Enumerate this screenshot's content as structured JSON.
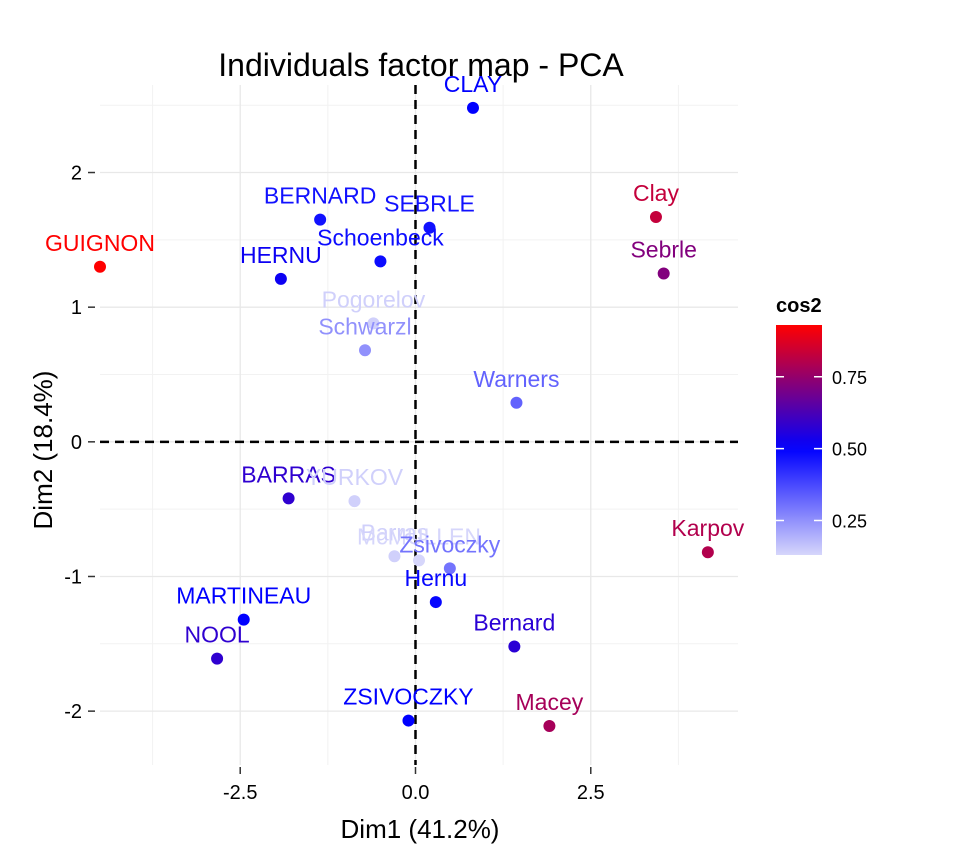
{
  "chart_data": {
    "type": "scatter",
    "title": "Individuals factor map - PCA",
    "xlabel": "Dim1 (41.2%)",
    "ylabel": "Dim2 (18.4%)",
    "xlim": [
      -4.5,
      4.6
    ],
    "ylim": [
      -2.4,
      2.65
    ],
    "x_ticks": [
      -2.5,
      0.0,
      2.5
    ],
    "x_tick_labels": [
      "-2.5",
      "0.0",
      "2.5"
    ],
    "y_ticks": [
      -2,
      -1,
      0,
      1,
      2
    ],
    "y_tick_labels": [
      "-2",
      "-1",
      "0",
      "1",
      "2"
    ],
    "grid": true,
    "reference_lines": {
      "x": 0,
      "y": 0,
      "style": "dashed"
    },
    "color_scale": {
      "name": "cos2",
      "min": 0.13,
      "max": 0.93,
      "low_color": "#d6d6fb",
      "mid_color": "#0000ff",
      "high_color": "#ff0000",
      "midpoint": 0.5,
      "ticks": [
        0.25,
        0.5,
        0.75
      ],
      "tick_labels": [
        "0.25",
        "0.50",
        "0.75"
      ]
    },
    "legend_position": "right",
    "points": [
      {
        "name": "SEBRLE",
        "x": 0.2,
        "y": 1.59,
        "cos2": 0.47
      },
      {
        "name": "CLAY",
        "x": 0.82,
        "y": 2.48,
        "cos2": 0.5
      },
      {
        "name": "BERNARD",
        "x": -1.36,
        "y": 1.65,
        "cos2": 0.47
      },
      {
        "name": "Schoenbeck",
        "x": -0.5,
        "y": 1.34,
        "cos2": 0.48
      },
      {
        "name": "HERNU",
        "x": -1.92,
        "y": 1.21,
        "cos2": 0.52
      },
      {
        "name": "GUIGNON",
        "x": -4.5,
        "y": 1.3,
        "cos2": 0.93
      },
      {
        "name": "Pogorelov",
        "x": -0.6,
        "y": 0.88,
        "cos2": 0.14
      },
      {
        "name": "Schwarzl",
        "x": -0.72,
        "y": 0.68,
        "cos2": 0.25
      },
      {
        "name": "Warners",
        "x": 1.44,
        "y": 0.29,
        "cos2": 0.33
      },
      {
        "name": "Clay",
        "x": 3.43,
        "y": 1.67,
        "cos2": 0.83
      },
      {
        "name": "Sebrle",
        "x": 3.54,
        "y": 1.25,
        "cos2": 0.72
      },
      {
        "name": "Karpov",
        "x": 4.17,
        "y": -0.82,
        "cos2": 0.8
      },
      {
        "name": "BARRAS",
        "x": -1.81,
        "y": -0.42,
        "cos2": 0.58
      },
      {
        "name": "YURKOV",
        "x": -0.87,
        "y": -0.44,
        "cos2": 0.14
      },
      {
        "name": "Barras",
        "x": -0.3,
        "y": -0.85,
        "cos2": 0.14
      },
      {
        "name": "McMULLEN",
        "x": 0.05,
        "y": -0.88,
        "cos2": 0.13
      },
      {
        "name": "Zsivoczky",
        "x": 0.49,
        "y": -0.94,
        "cos2": 0.3
      },
      {
        "name": "Hernu",
        "x": 0.29,
        "y": -1.19,
        "cos2": 0.49
      },
      {
        "name": "MARTINEAU",
        "x": -2.45,
        "y": -1.32,
        "cos2": 0.5
      },
      {
        "name": "Bernard",
        "x": 1.41,
        "y": -1.52,
        "cos2": 0.57
      },
      {
        "name": "NOOL",
        "x": -2.83,
        "y": -1.61,
        "cos2": 0.58
      },
      {
        "name": "ZSIVOCZKY",
        "x": -0.1,
        "y": -2.07,
        "cos2": 0.5
      },
      {
        "name": "Macey",
        "x": 1.91,
        "y": -2.11,
        "cos2": 0.78
      }
    ]
  }
}
